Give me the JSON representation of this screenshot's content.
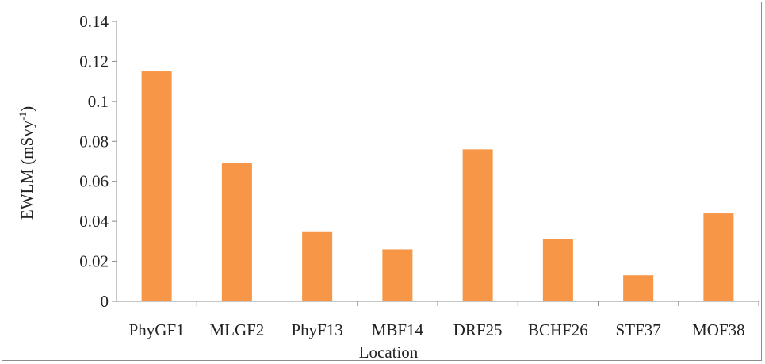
{
  "chart_data": {
    "type": "bar",
    "title": "",
    "xlabel": "Location",
    "ylabel": "EWLM (mSvy⁻¹)",
    "ylabel_base": "EWLM (mSvy",
    "ylabel_sup": "-1",
    "ylabel_tail": ")",
    "categories": [
      "PhyGF1",
      "MLGF2",
      "PhyF13",
      "MBF14",
      "DRF25",
      "BCHF26",
      "STF37",
      "MOF38"
    ],
    "values": [
      0.115,
      0.069,
      0.035,
      0.026,
      0.076,
      0.031,
      0.013,
      0.044
    ],
    "ylim": [
      0,
      0.14
    ],
    "yticks": [
      "0",
      "0.02",
      "0.04",
      "0.06",
      "0.08",
      "0.1",
      "0.12",
      "0.14"
    ],
    "bar_color": "#f79646",
    "grid": false,
    "legend": "none"
  }
}
